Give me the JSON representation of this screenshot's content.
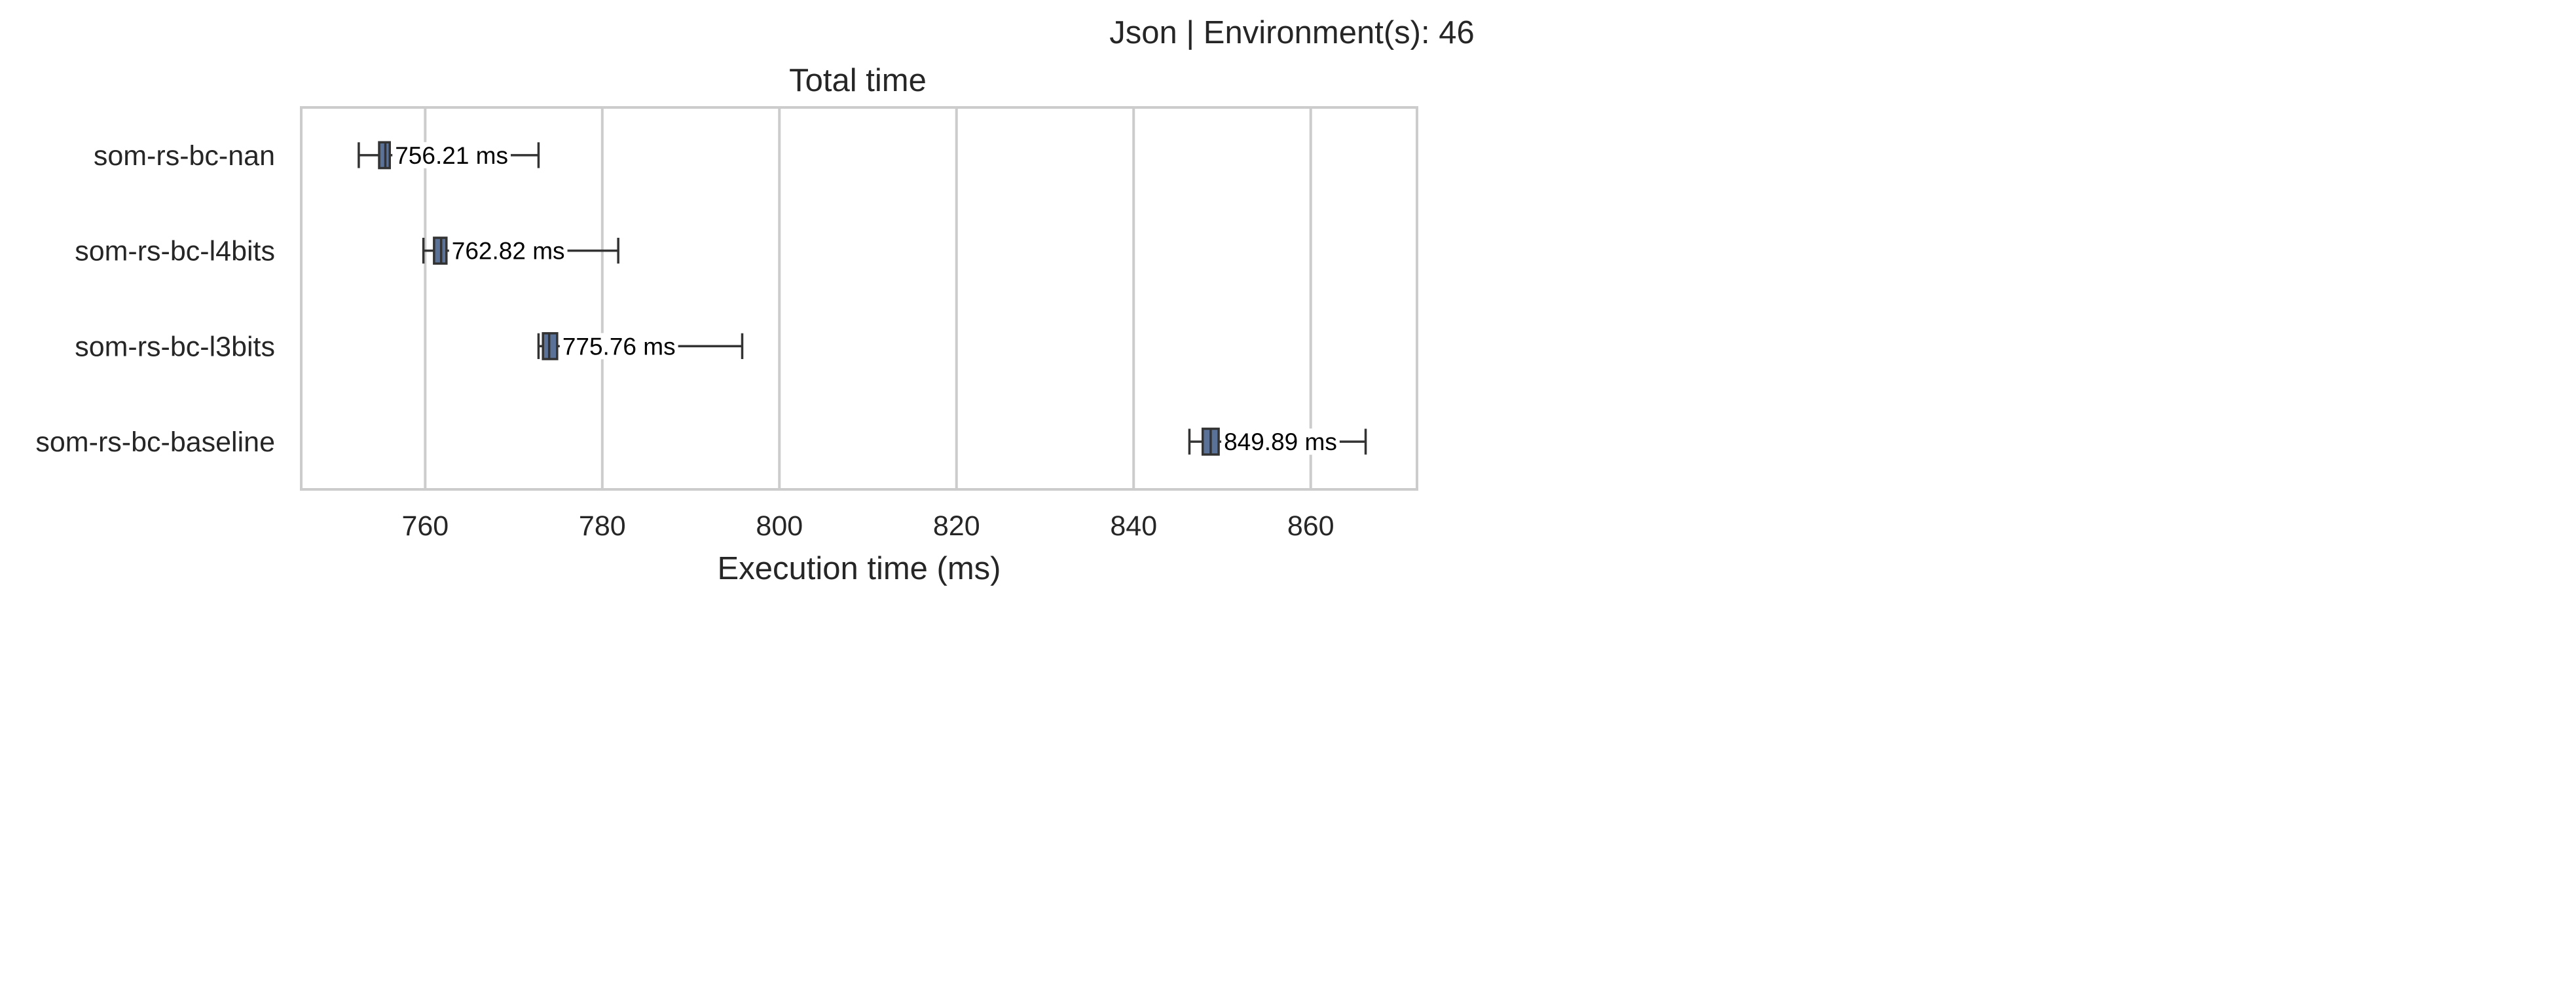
{
  "suptitle": "Json | Environment(s): 46",
  "chart_data": {
    "type": "box",
    "orientation": "horizontal",
    "title": "Total time",
    "xlabel": "Execution time (ms)",
    "ylabel": "",
    "xlim": [
      746,
      872
    ],
    "xticks": [
      760,
      780,
      800,
      820,
      840,
      860
    ],
    "grid": "vertical",
    "box_color": "#5b7298",
    "categories": [
      "som-rs-bc-nan",
      "som-rs-bc-l4bits",
      "som-rs-bc-l3bits",
      "som-rs-bc-baseline"
    ],
    "boxes": [
      {
        "category": "som-rs-bc-nan",
        "whisker_low": 752.5,
        "q1": 754.8,
        "median": 755.5,
        "q3": 756.0,
        "whisker_high": 772.8,
        "label": "756.21 ms"
      },
      {
        "category": "som-rs-bc-l4bits",
        "whisker_low": 759.8,
        "q1": 761.0,
        "median": 761.8,
        "q3": 762.4,
        "whisker_high": 781.8,
        "label": "762.82 ms"
      },
      {
        "category": "som-rs-bc-l3bits",
        "whisker_low": 772.8,
        "q1": 773.3,
        "median": 774.0,
        "q3": 774.9,
        "whisker_high": 795.8,
        "label": "775.76 ms"
      },
      {
        "category": "som-rs-bc-baseline",
        "whisker_low": 846.3,
        "q1": 847.8,
        "median": 848.7,
        "q3": 849.6,
        "whisker_high": 866.2,
        "label": "849.89 ms"
      }
    ]
  }
}
